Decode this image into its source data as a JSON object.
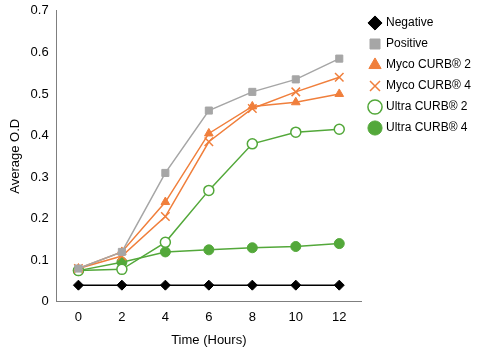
{
  "chart_data": {
    "type": "line",
    "x_label": "Time (Hours)",
    "y_label": "Average O.D",
    "x": [
      0,
      2,
      4,
      6,
      8,
      10,
      12
    ],
    "xlim": [
      -1,
      13
    ],
    "xticks": [
      0,
      2,
      4,
      6,
      8,
      10,
      12
    ],
    "ylim": [
      0,
      0.7
    ],
    "yticks": [
      0,
      0.1,
      0.2,
      0.3,
      0.4,
      0.5,
      0.6,
      0.7
    ],
    "grid": false,
    "legend": "right",
    "series": [
      {
        "name": "Negative",
        "color": "#000000",
        "marker": "diamond",
        "values": [
          0.04,
          0.04,
          0.04,
          0.04,
          0.04,
          0.04,
          0.04
        ]
      },
      {
        "name": "Positive",
        "color": "#a6a6a6",
        "marker": "square",
        "values": [
          0.08,
          0.12,
          0.31,
          0.46,
          0.505,
          0.535,
          0.585
        ]
      },
      {
        "name": "Myco CURB® 2",
        "color": "#f07f3c",
        "marker": "triangle",
        "values": [
          0.08,
          0.12,
          0.24,
          0.405,
          0.47,
          0.48,
          0.5
        ]
      },
      {
        "name": "Myco CURB® 4",
        "color": "#f07f3c",
        "marker": "x",
        "values": [
          0.08,
          0.11,
          0.205,
          0.385,
          0.465,
          0.505,
          0.54
        ]
      },
      {
        "name": "Ultra CURB® 2",
        "color": "#53a83a",
        "marker": "open_circle",
        "values": [
          0.075,
          0.078,
          0.143,
          0.268,
          0.38,
          0.408,
          0.415
        ]
      },
      {
        "name": "Ultra CURB® 4",
        "color": "#53a83a",
        "marker": "circle",
        "values": [
          0.075,
          0.095,
          0.12,
          0.125,
          0.13,
          0.133,
          0.14
        ]
      }
    ]
  }
}
